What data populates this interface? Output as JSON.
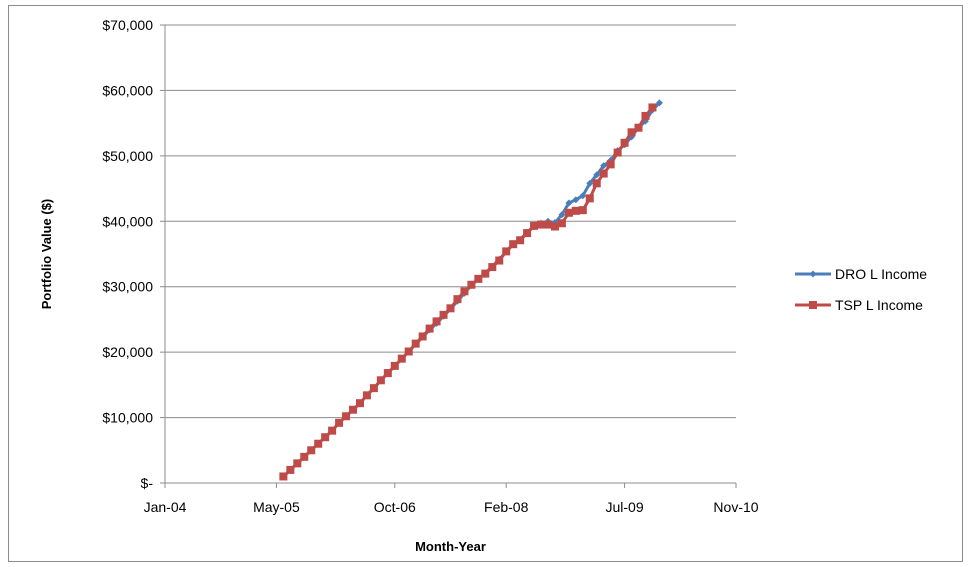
{
  "chart_data": {
    "type": "line",
    "xlabel": "Month-Year",
    "ylabel": "Portfolio Value ($)",
    "x_axis": {
      "type": "date",
      "min": "2004-01",
      "max": "2010-11",
      "ticks": [
        "2004-01",
        "2005-05",
        "2006-10",
        "2008-02",
        "2009-07",
        "2010-11"
      ],
      "tick_labels": [
        "Jan-04",
        "May-05",
        "Oct-06",
        "Feb-08",
        "Jul-09",
        "Nov-10"
      ]
    },
    "y_axis": {
      "min": 0,
      "max": 70000,
      "ticks": [
        0,
        10000,
        20000,
        30000,
        40000,
        50000,
        60000,
        70000
      ],
      "tick_labels": [
        "$-",
        "$10,000",
        "$20,000",
        "$30,000",
        "$40,000",
        "$50,000",
        "$60,000",
        "$70,000"
      ]
    },
    "grid": {
      "horizontal": true,
      "vertical": false
    },
    "legend": {
      "position": "right"
    },
    "series": [
      {
        "name": "DRO L Income",
        "color": "#4a7ebb",
        "marker": "diamond",
        "points": [
          [
            "2005-06",
            1000
          ],
          [
            "2005-07",
            2000
          ],
          [
            "2005-08",
            3000
          ],
          [
            "2005-09",
            4000
          ],
          [
            "2005-10",
            5000
          ],
          [
            "2005-11",
            6000
          ],
          [
            "2005-12",
            7000
          ],
          [
            "2006-01",
            8000
          ],
          [
            "2006-02",
            9200
          ],
          [
            "2006-03",
            10200
          ],
          [
            "2006-04",
            11200
          ],
          [
            "2006-05",
            12200
          ],
          [
            "2006-06",
            13400
          ],
          [
            "2006-07",
            14500
          ],
          [
            "2006-08",
            15700
          ],
          [
            "2006-09",
            16800
          ],
          [
            "2006-10",
            17900
          ],
          [
            "2006-11",
            19000
          ],
          [
            "2006-12",
            20100
          ],
          [
            "2007-01",
            21200
          ],
          [
            "2007-02",
            22300
          ],
          [
            "2007-03",
            23400
          ],
          [
            "2007-04",
            24400
          ],
          [
            "2007-05",
            25500
          ],
          [
            "2007-06",
            26600
          ],
          [
            "2007-07",
            27800
          ],
          [
            "2007-08",
            29000
          ],
          [
            "2007-09",
            30200
          ],
          [
            "2007-10",
            31200
          ],
          [
            "2007-11",
            32100
          ],
          [
            "2007-12",
            33100
          ],
          [
            "2008-01",
            34200
          ],
          [
            "2008-02",
            35300
          ],
          [
            "2008-03",
            36500
          ],
          [
            "2008-04",
            37200
          ],
          [
            "2008-05",
            38300
          ],
          [
            "2008-06",
            39300
          ],
          [
            "2008-07",
            39700
          ],
          [
            "2008-08",
            40000
          ],
          [
            "2008-09",
            39800
          ],
          [
            "2008-10",
            41000
          ],
          [
            "2008-11",
            42800
          ],
          [
            "2008-12",
            43300
          ],
          [
            "2009-01",
            43900
          ],
          [
            "2009-02",
            45800
          ],
          [
            "2009-03",
            47100
          ],
          [
            "2009-04",
            48500
          ],
          [
            "2009-05",
            49300
          ],
          [
            "2009-06",
            50800
          ],
          [
            "2009-07",
            51700
          ],
          [
            "2009-08",
            52900
          ],
          [
            "2009-09",
            54300
          ],
          [
            "2009-10",
            55300
          ],
          [
            "2009-11",
            57000
          ],
          [
            "2009-12",
            58100
          ]
        ]
      },
      {
        "name": "TSP L Income",
        "color": "#be4b48",
        "marker": "square",
        "points": [
          [
            "2005-06",
            1000
          ],
          [
            "2005-07",
            2000
          ],
          [
            "2005-08",
            3000
          ],
          [
            "2005-09",
            4000
          ],
          [
            "2005-10",
            5000
          ],
          [
            "2005-11",
            6000
          ],
          [
            "2005-12",
            7000
          ],
          [
            "2006-01",
            8000
          ],
          [
            "2006-02",
            9200
          ],
          [
            "2006-03",
            10200
          ],
          [
            "2006-04",
            11200
          ],
          [
            "2006-05",
            12200
          ],
          [
            "2006-06",
            13400
          ],
          [
            "2006-07",
            14500
          ],
          [
            "2006-08",
            15700
          ],
          [
            "2006-09",
            16800
          ],
          [
            "2006-10",
            17900
          ],
          [
            "2006-11",
            19000
          ],
          [
            "2006-12",
            20100
          ],
          [
            "2007-01",
            21300
          ],
          [
            "2007-02",
            22400
          ],
          [
            "2007-03",
            23600
          ],
          [
            "2007-04",
            24700
          ],
          [
            "2007-05",
            25700
          ],
          [
            "2007-06",
            26700
          ],
          [
            "2007-07",
            28100
          ],
          [
            "2007-08",
            29300
          ],
          [
            "2007-09",
            30300
          ],
          [
            "2007-10",
            31200
          ],
          [
            "2007-11",
            32000
          ],
          [
            "2007-12",
            33000
          ],
          [
            "2008-01",
            34000
          ],
          [
            "2008-02",
            35400
          ],
          [
            "2008-03",
            36500
          ],
          [
            "2008-04",
            37100
          ],
          [
            "2008-05",
            38200
          ],
          [
            "2008-06",
            39300
          ],
          [
            "2008-07",
            39500
          ],
          [
            "2008-08",
            39500
          ],
          [
            "2008-09",
            39200
          ],
          [
            "2008-10",
            39700
          ],
          [
            "2008-11",
            41300
          ],
          [
            "2008-12",
            41600
          ],
          [
            "2009-01",
            41700
          ],
          [
            "2009-02",
            43500
          ],
          [
            "2009-03",
            45800
          ],
          [
            "2009-04",
            47300
          ],
          [
            "2009-05",
            48700
          ],
          [
            "2009-06",
            50500
          ],
          [
            "2009-07",
            52000
          ],
          [
            "2009-08",
            53600
          ],
          [
            "2009-09",
            54300
          ],
          [
            "2009-10",
            56100
          ],
          [
            "2009-11",
            57400
          ]
        ]
      }
    ]
  }
}
